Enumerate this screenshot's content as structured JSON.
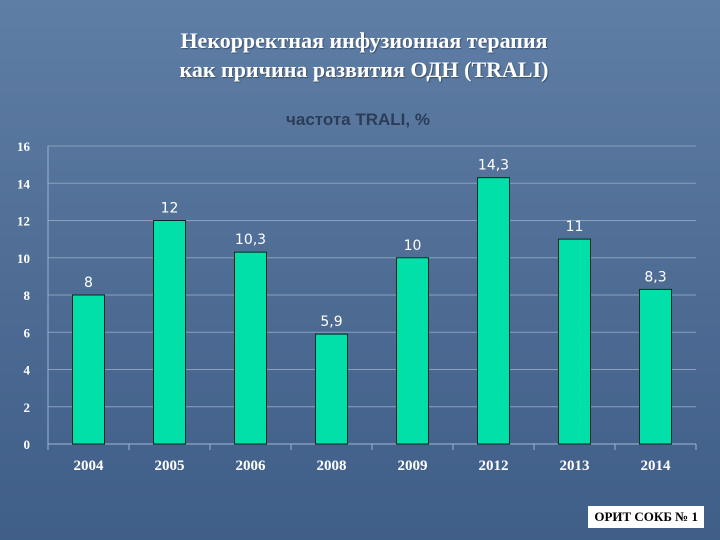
{
  "slide": {
    "title_line1": "Некорректная инфузионная терапия",
    "title_line2": "как причина развития ОДН (TRALI)",
    "footer": "ОРИТ СОКБ № 1"
  },
  "colors": {
    "bar": "#00e0a8",
    "background": "#4d6b93",
    "gridline": "#8aa0bf"
  },
  "chart_data": {
    "type": "bar",
    "title": "частота TRALI, %",
    "categories": [
      "2004",
      "2005",
      "2006",
      "2008",
      "2009",
      "2012",
      "2013",
      "2014"
    ],
    "values": [
      8,
      12,
      10.3,
      5.9,
      10,
      14.3,
      11,
      8.3
    ],
    "data_labels": [
      "8",
      "12",
      "10,3",
      "5,9",
      "10",
      "14,3",
      "11",
      "8,3"
    ],
    "ylim": [
      0,
      16
    ],
    "yticks": [
      0,
      2,
      4,
      6,
      8,
      10,
      12,
      14,
      16
    ],
    "grid": true,
    "legend": "none"
  }
}
